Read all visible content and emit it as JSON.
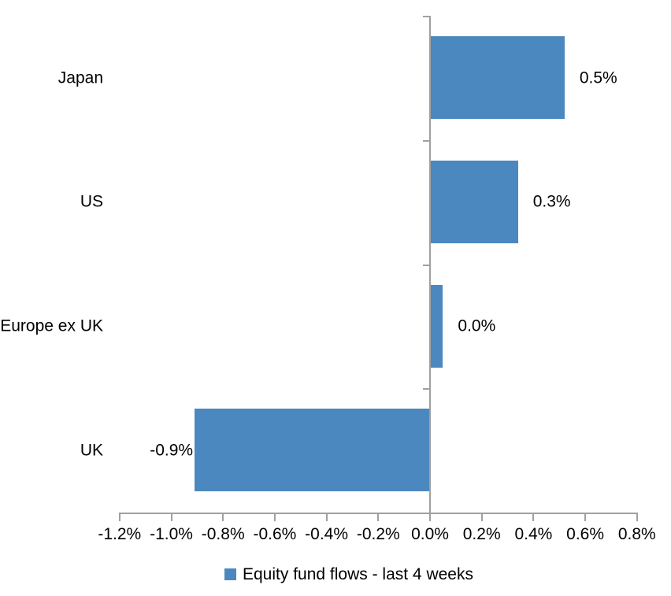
{
  "chart_data": {
    "type": "bar",
    "orientation": "horizontal",
    "categories": [
      "Japan",
      "US",
      "Europe ex UK",
      "UK"
    ],
    "values": [
      0.5,
      0.3,
      0.0,
      -0.9
    ],
    "value_labels": [
      "0.5%",
      "0.3%",
      "0.0%",
      "-0.9%"
    ],
    "estimated_bar_values": [
      0.52,
      0.34,
      0.05,
      -0.91
    ],
    "x_ticks": [
      -1.2,
      -1.0,
      -0.8,
      -0.6,
      -0.4,
      -0.2,
      0.0,
      0.2,
      0.4,
      0.6,
      0.8
    ],
    "x_tick_labels": [
      "-1.2%",
      "-1.0%",
      "-0.8%",
      "-0.6%",
      "-0.4%",
      "-0.2%",
      "0.0%",
      "0.2%",
      "0.4%",
      "0.6%",
      "0.8%"
    ],
    "xlim": [
      -1.2,
      0.8
    ],
    "title": "",
    "xlabel": "",
    "ylabel": "",
    "grid": false,
    "legend": [
      {
        "label": "Equity fund flows - last 4 weeks"
      }
    ],
    "legend_position": "bottom",
    "colors": {
      "bar": "#4B88C0",
      "axis": "#A0A0A0",
      "text": "#000000",
      "background": "#FFFFFF"
    }
  }
}
